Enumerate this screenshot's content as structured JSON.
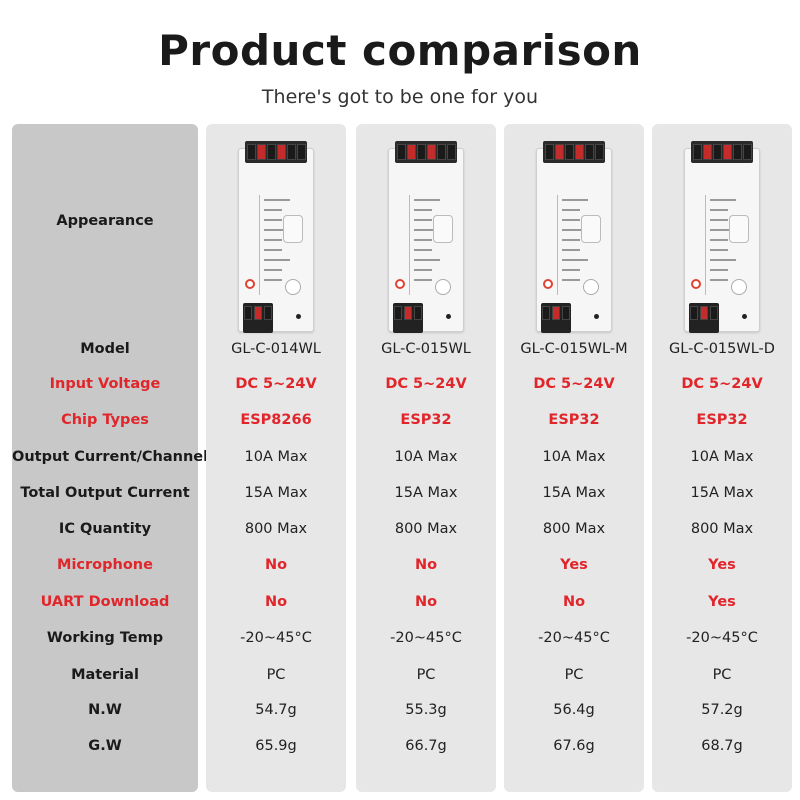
{
  "header": {
    "title": "Product comparison",
    "subtitle": "There's got to be one for you"
  },
  "rows": [
    {
      "label": "Appearance",
      "highlight": false
    },
    {
      "label": "Model",
      "highlight": false
    },
    {
      "label": "Input Voltage",
      "highlight": true
    },
    {
      "label": "Chip Types",
      "highlight": true
    },
    {
      "label": "Output Current/Channel",
      "highlight": false
    },
    {
      "label": "Total Output Current",
      "highlight": false
    },
    {
      "label": "IC Quantity",
      "highlight": false
    },
    {
      "label": "Microphone",
      "highlight": true
    },
    {
      "label": "UART Download",
      "highlight": true
    },
    {
      "label": "Working Temp",
      "highlight": false
    },
    {
      "label": "Material",
      "highlight": false
    },
    {
      "label": "N.W",
      "highlight": false
    },
    {
      "label": "G.W",
      "highlight": false
    }
  ],
  "products": [
    {
      "image": "led-controller-device",
      "values": [
        "GL-C-014WL",
        "DC 5~24V",
        "ESP8266",
        "10A Max",
        "15A Max",
        "800 Max",
        "No",
        "No",
        "-20~45°C",
        "PC",
        "54.7g",
        "65.9g"
      ]
    },
    {
      "image": "led-controller-device",
      "values": [
        "GL-C-015WL",
        "DC 5~24V",
        "ESP32",
        "10A Max",
        "15A Max",
        "800 Max",
        "No",
        "No",
        "-20~45°C",
        "PC",
        "55.3g",
        "66.7g"
      ]
    },
    {
      "image": "led-controller-device",
      "values": [
        "GL-C-015WL-M",
        "DC 5~24V",
        "ESP32",
        "10A Max",
        "15A Max",
        "800 Max",
        "Yes",
        "No",
        "-20~45°C",
        "PC",
        "56.4g",
        "67.6g"
      ]
    },
    {
      "image": "led-controller-device",
      "values": [
        "GL-C-015WL-D",
        "DC 5~24V",
        "ESP32",
        "10A Max",
        "15A Max",
        "800 Max",
        "Yes",
        "Yes",
        "-20~45°C",
        "PC",
        "57.2g",
        "68.7g"
      ]
    }
  ],
  "colors": {
    "highlight": "#e0262b",
    "label_column_bg": "#c8c8c8",
    "product_column_bg": "#e7e7e7"
  }
}
